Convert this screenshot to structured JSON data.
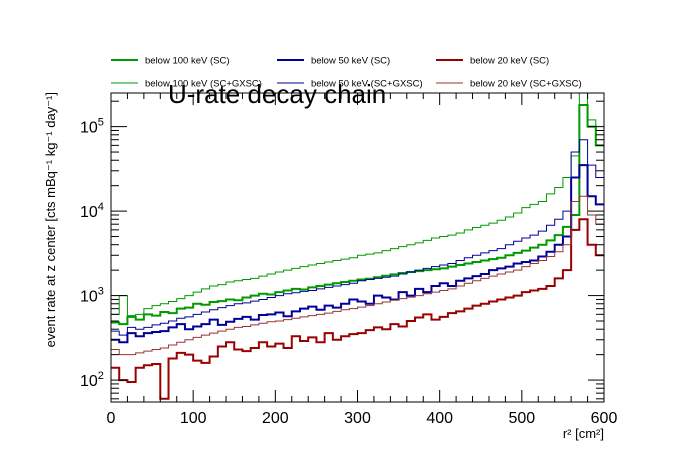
{
  "chart_data": {
    "type": "line",
    "title": "U-rate decay chain",
    "xlabel": "r² [cm²]",
    "ylabel": "event rate at z center [cts mBq⁻¹ kg⁻¹ day⁻¹]",
    "xlim": [
      0,
      600
    ],
    "ylim": [
      55,
      250000
    ],
    "y_scale": "log",
    "bin_width": 10,
    "x_ticks": [
      0,
      100,
      200,
      300,
      400,
      500,
      600
    ],
    "y_ticks": [
      {
        "value": 100,
        "base": "10",
        "exp": "2"
      },
      {
        "value": 1000,
        "base": "10",
        "exp": "3"
      },
      {
        "value": 10000,
        "base": "10",
        "exp": "4"
      },
      {
        "value": 100000,
        "base": "10",
        "exp": "5"
      }
    ],
    "legend_position": "top",
    "series": [
      {
        "name": "below 100 keV (SC)",
        "color": "#009900",
        "width": 2,
        "values": [
          480,
          460,
          560,
          520,
          600,
          580,
          640,
          620,
          700,
          720,
          800,
          780,
          840,
          860,
          900,
          880,
          950,
          1000,
          1050,
          1030,
          1100,
          1150,
          1200,
          1180,
          1250,
          1300,
          1350,
          1400,
          1450,
          1500,
          1550,
          1580,
          1650,
          1720,
          1780,
          1850,
          1900,
          1950,
          2000,
          2050,
          2100,
          2200,
          2300,
          2400,
          2500,
          2600,
          2700,
          2800,
          3000,
          3200,
          3400,
          3700,
          4000,
          4500,
          5200,
          6500,
          9000,
          180000,
          100000,
          60000
        ]
      },
      {
        "name": "below 50 keV (SC)",
        "color": "#000099",
        "width": 2,
        "values": [
          300,
          280,
          360,
          330,
          360,
          370,
          380,
          420,
          460,
          400,
          430,
          460,
          520,
          450,
          490,
          530,
          560,
          520,
          590,
          600,
          630,
          570,
          650,
          700,
          740,
          680,
          760,
          720,
          800,
          900,
          850,
          800,
          1000,
          950,
          900,
          1100,
          1000,
          1200,
          1100,
          1300,
          1400,
          1300,
          1500,
          1600,
          1700,
          1800,
          2000,
          2100,
          2200,
          2400,
          2500,
          2600,
          2900,
          3300,
          4000,
          5000,
          25000,
          35000,
          15000,
          12000
        ]
      },
      {
        "name": "below 20 keV (SC)",
        "color": "#990000",
        "width": 2,
        "values": [
          140,
          100,
          95,
          140,
          150,
          155,
          60,
          180,
          210,
          200,
          170,
          160,
          190,
          250,
          280,
          230,
          220,
          240,
          280,
          250,
          270,
          240,
          330,
          290,
          320,
          280,
          360,
          300,
          330,
          350,
          360,
          390,
          420,
          400,
          460,
          430,
          500,
          550,
          600,
          520,
          560,
          620,
          650,
          700,
          760,
          800,
          850,
          900,
          950,
          1000,
          1100,
          1150,
          1200,
          1300,
          1600,
          2000,
          6000,
          8000,
          4000,
          3000
        ]
      },
      {
        "name": "below 100 keV (SC+GXSC)",
        "color": "#009900",
        "width": 1,
        "values": [
          600,
          1000,
          580,
          600,
          700,
          760,
          800,
          850,
          920,
          1000,
          1100,
          1200,
          1300,
          1350,
          1450,
          1500,
          1550,
          1600,
          1700,
          1800,
          1900,
          2000,
          2100,
          2200,
          2300,
          2400,
          2500,
          2600,
          2700,
          2800,
          3000,
          3100,
          3200,
          3400,
          3600,
          3800,
          4000,
          4200,
          4500,
          4800,
          5000,
          5200,
          5500,
          6000,
          6400,
          6800,
          7200,
          7800,
          8500,
          9500,
          11000,
          12000,
          13000,
          16000,
          19000,
          25000,
          45000,
          250000,
          120000,
          90000
        ]
      },
      {
        "name": "below 50 keV (SC+GXSC)",
        "color": "#000099",
        "width": 1,
        "values": [
          380,
          340,
          420,
          400,
          420,
          450,
          470,
          500,
          540,
          560,
          600,
          640,
          680,
          720,
          760,
          800,
          820,
          860,
          900,
          950,
          1000,
          1050,
          1080,
          1120,
          1150,
          1200,
          1250,
          1300,
          1350,
          1400,
          1500,
          1550,
          1600,
          1650,
          1700,
          1800,
          1900,
          2000,
          2100,
          2200,
          2300,
          2400,
          2600,
          2800,
          3000,
          3200,
          3400,
          3600,
          4000,
          4400,
          4800,
          5200,
          5800,
          6800,
          8000,
          10000,
          50000,
          70000,
          35000,
          25000
        ]
      },
      {
        "name": "below 20 keV (SC+GXSC)",
        "color": "#993333",
        "width": 1,
        "values": [
          230,
          200,
          200,
          210,
          220,
          230,
          240,
          260,
          280,
          300,
          320,
          340,
          360,
          380,
          400,
          420,
          430,
          450,
          470,
          490,
          500,
          520,
          540,
          560,
          580,
          600,
          620,
          650,
          680,
          700,
          730,
          760,
          800,
          840,
          880,
          920,
          960,
          1000,
          1050,
          1100,
          1150,
          1200,
          1300,
          1400,
          1500,
          1600,
          1700,
          1800,
          1900,
          2000,
          2200,
          2400,
          2600,
          2900,
          3300,
          4000,
          13000,
          15000,
          9000,
          7000
        ]
      }
    ]
  }
}
